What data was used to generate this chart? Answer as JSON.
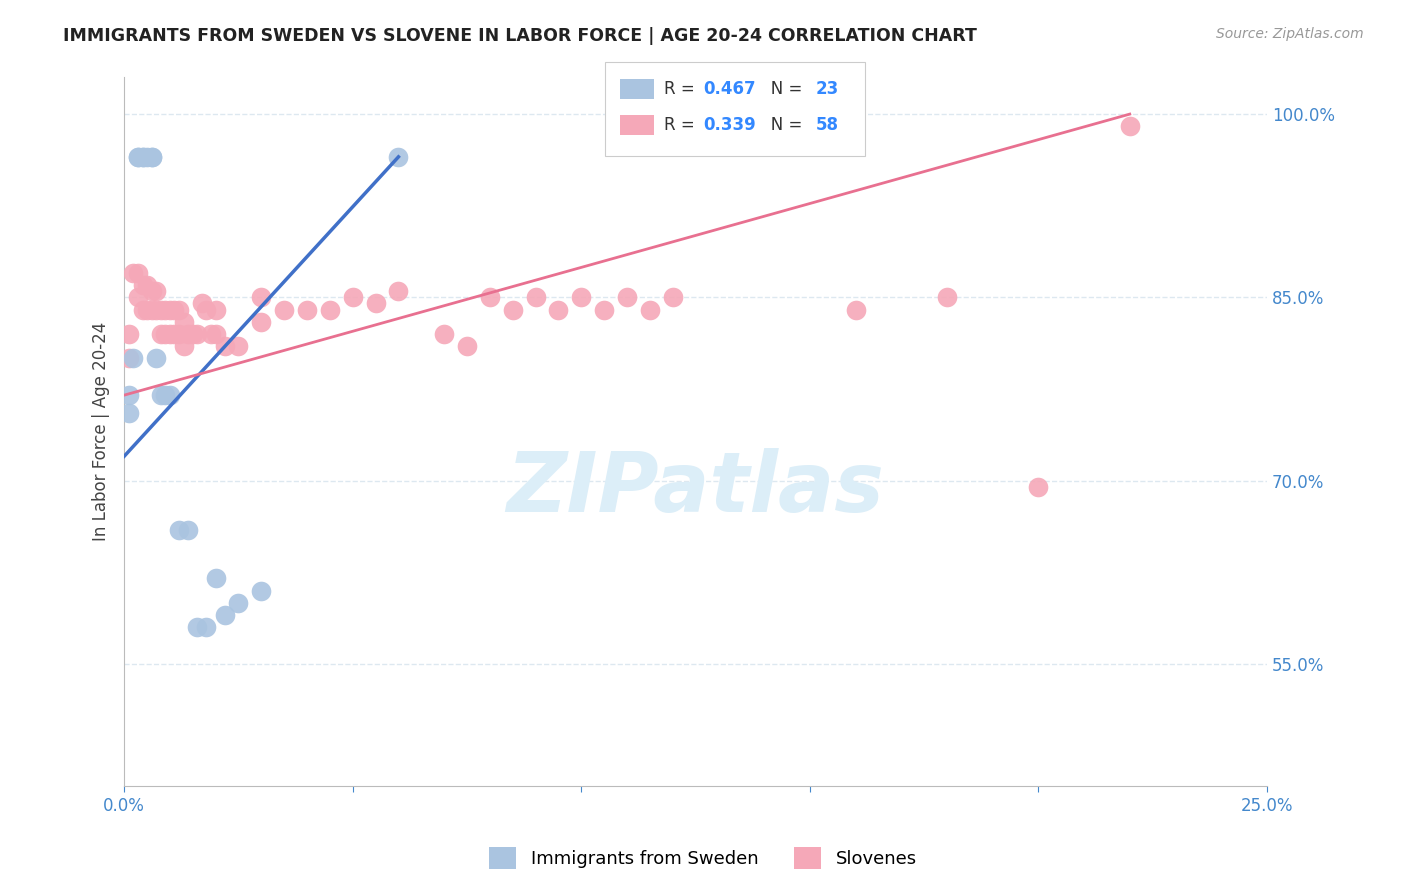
{
  "title": "IMMIGRANTS FROM SWEDEN VS SLOVENE IN LABOR FORCE | AGE 20-24 CORRELATION CHART",
  "source": "Source: ZipAtlas.com",
  "ylabel": "In Labor Force | Age 20-24",
  "xlim": [
    0.0,
    0.25
  ],
  "ylim": [
    0.45,
    1.03
  ],
  "yticks": [
    0.55,
    0.7,
    0.85,
    1.0
  ],
  "ytick_labels": [
    "55.0%",
    "70.0%",
    "85.0%",
    "100.0%"
  ],
  "xticks": [
    0.0,
    0.05,
    0.1,
    0.15,
    0.2,
    0.25
  ],
  "xtick_labels": [
    "0.0%",
    "",
    "",
    "",
    "",
    "25.0%"
  ],
  "sweden_R": 0.467,
  "sweden_N": 23,
  "slovene_R": 0.339,
  "slovene_N": 58,
  "sweden_color": "#aac4e0",
  "slovene_color": "#f5a8b8",
  "sweden_line_color": "#4070c8",
  "slovene_line_color": "#e87090",
  "legend_label_sweden": "Immigrants from Sweden",
  "legend_label_slovene": "Slovenes",
  "sweden_x": [
    0.001,
    0.001,
    0.002,
    0.003,
    0.003,
    0.004,
    0.004,
    0.005,
    0.006,
    0.006,
    0.007,
    0.008,
    0.009,
    0.01,
    0.012,
    0.014,
    0.016,
    0.018,
    0.02,
    0.022,
    0.025,
    0.03,
    0.06
  ],
  "sweden_y": [
    0.77,
    0.755,
    0.8,
    0.965,
    0.965,
    0.965,
    0.965,
    0.965,
    0.965,
    0.965,
    0.8,
    0.77,
    0.77,
    0.77,
    0.66,
    0.66,
    0.58,
    0.58,
    0.62,
    0.59,
    0.6,
    0.61,
    0.965
  ],
  "slovene_x": [
    0.001,
    0.001,
    0.002,
    0.003,
    0.003,
    0.004,
    0.004,
    0.005,
    0.005,
    0.006,
    0.006,
    0.007,
    0.007,
    0.008,
    0.008,
    0.009,
    0.009,
    0.01,
    0.01,
    0.011,
    0.011,
    0.012,
    0.012,
    0.013,
    0.013,
    0.014,
    0.015,
    0.016,
    0.017,
    0.018,
    0.019,
    0.02,
    0.02,
    0.022,
    0.025,
    0.03,
    0.03,
    0.035,
    0.04,
    0.045,
    0.05,
    0.055,
    0.06,
    0.07,
    0.075,
    0.08,
    0.085,
    0.09,
    0.095,
    0.1,
    0.105,
    0.11,
    0.115,
    0.12,
    0.16,
    0.18,
    0.2,
    0.22
  ],
  "slovene_y": [
    0.8,
    0.82,
    0.87,
    0.85,
    0.87,
    0.86,
    0.84,
    0.86,
    0.84,
    0.855,
    0.84,
    0.855,
    0.84,
    0.84,
    0.82,
    0.84,
    0.82,
    0.84,
    0.82,
    0.84,
    0.82,
    0.84,
    0.82,
    0.83,
    0.81,
    0.82,
    0.82,
    0.82,
    0.845,
    0.84,
    0.82,
    0.84,
    0.82,
    0.81,
    0.81,
    0.85,
    0.83,
    0.84,
    0.84,
    0.84,
    0.85,
    0.845,
    0.855,
    0.82,
    0.81,
    0.85,
    0.84,
    0.85,
    0.84,
    0.85,
    0.84,
    0.85,
    0.84,
    0.85,
    0.84,
    0.85,
    0.695,
    0.99
  ],
  "background_color": "#ffffff",
  "grid_color": "#dde8f0",
  "title_color": "#222222",
  "axis_label_color": "#444444",
  "tick_color": "#4488cc",
  "watermark_text": "ZIPatlas",
  "watermark_color": "#dceef8",
  "watermark_fontsize": 60,
  "sweden_line_x": [
    0.0,
    0.06
  ],
  "sweden_line_y": [
    0.72,
    0.965
  ],
  "slovene_line_x": [
    0.0,
    0.22
  ],
  "slovene_line_y": [
    0.77,
    1.0
  ]
}
